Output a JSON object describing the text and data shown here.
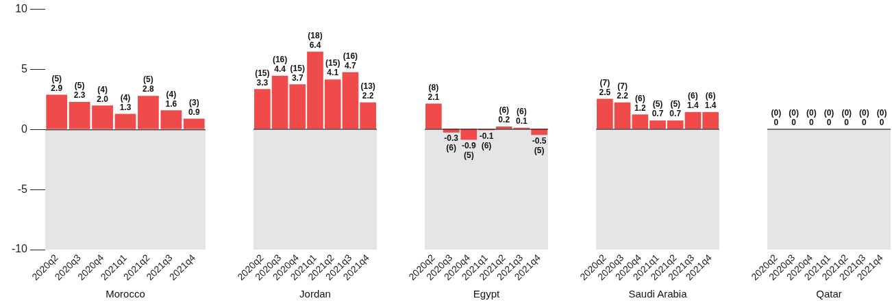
{
  "chart_data": [
    {
      "type": "bar",
      "xlabel": "Morocco",
      "categories": [
        "2020q2",
        "2020q3",
        "2020q4",
        "2021q1",
        "2021q2",
        "2021q3",
        "2021q4"
      ],
      "values": [
        2.9,
        2.3,
        2.0,
        1.3,
        2.8,
        1.6,
        0.9
      ],
      "value_labels": [
        "(5)\n2.9",
        "(5)\n2.3",
        "(4)\n2.0",
        "(4)\n1.3",
        "(5)\n2.8",
        "(4)\n1.6",
        "(3)\n0.9"
      ],
      "color": "#f04b4b",
      "ylim": [
        -10,
        10
      ],
      "yticks": [
        -10,
        -5,
        0,
        5,
        10
      ],
      "bands": [
        {
          "axis": "y",
          "from": -10,
          "to": 0,
          "color": "#e5e5e7"
        }
      ],
      "ref_lines": [
        {
          "axis": "y",
          "value": 0,
          "color": "#000000"
        }
      ]
    },
    {
      "type": "bar",
      "xlabel": "Jordan",
      "categories": [
        "2020q2",
        "2020q3",
        "2020q4",
        "2021q1",
        "2021q2",
        "2021q3",
        "2021q4"
      ],
      "values": [
        3.3,
        4.4,
        3.7,
        6.4,
        4.1,
        4.7,
        2.2
      ],
      "value_labels": [
        "(15)\n3.3",
        "(16)\n4.4",
        "(15)\n3.7",
        "(18)\n6.4",
        "(15)\n4.1",
        "(16)\n4.7",
        "(13)\n2.2"
      ],
      "color": "#f04b4b",
      "ylim": [
        -10,
        10
      ],
      "yticks": [
        -10,
        -5,
        0,
        5,
        10
      ],
      "tick_labels": "x",
      "bands": [
        {
          "axis": "y",
          "from": -10,
          "to": 0,
          "color": "#e5e5e7"
        }
      ],
      "ref_lines": [
        {
          "axis": "y",
          "value": 0,
          "color": "#000000"
        }
      ]
    },
    {
      "type": "bar",
      "xlabel": "Egypt",
      "categories": [
        "2020q2",
        "2020q3",
        "2020q4",
        "2021q1",
        "2021q2",
        "2021q3",
        "2021q4"
      ],
      "values": [
        2.1,
        -0.3,
        -0.9,
        -0.1,
        0.2,
        0.1,
        -0.5
      ],
      "value_labels": [
        "(8)\n2.1",
        "-0.3\n(6)",
        "-0.9\n(5)",
        "-0.1\n(6)",
        "(6)\n0.2",
        "(6)\n0.1",
        "-0.5\n(5)"
      ],
      "color": "#f04b4b",
      "ylim": [
        -10,
        10
      ],
      "yticks": [
        -10,
        -5,
        0,
        5,
        10
      ],
      "tick_labels": "x",
      "bands": [
        {
          "axis": "y",
          "from": -10,
          "to": 0,
          "color": "#e5e5e7"
        }
      ],
      "ref_lines": [
        {
          "axis": "y",
          "value": 0,
          "color": "#000000"
        }
      ]
    },
    {
      "type": "bar",
      "xlabel": "Saudi Arabia",
      "categories": [
        "2020q2",
        "2020q3",
        "2020q4",
        "2021q1",
        "2021q2",
        "2021q3",
        "2021q4"
      ],
      "values": [
        2.5,
        2.2,
        1.2,
        0.7,
        0.7,
        1.4,
        1.4
      ],
      "value_labels": [
        "(7)\n2.5",
        "(7)\n2.2",
        "(6)\n1.2",
        "(5)\n0.7",
        "(5)\n0.7",
        "(6)\n1.4",
        "(6)\n1.4"
      ],
      "color": "#f04b4b",
      "ylim": [
        -10,
        10
      ],
      "yticks": [
        -10,
        -5,
        0,
        5,
        10
      ],
      "tick_labels": "x",
      "bands": [
        {
          "axis": "y",
          "from": -10,
          "to": 0,
          "color": "#e5e5e7"
        }
      ],
      "ref_lines": [
        {
          "axis": "y",
          "value": 0,
          "color": "#000000"
        }
      ]
    },
    {
      "type": "bar",
      "xlabel": "Qatar",
      "categories": [
        "2020q2",
        "2020q3",
        "2020q4",
        "2021q1",
        "2021q2",
        "2021q3",
        "2021q4"
      ],
      "values": [
        0,
        0,
        0,
        0,
        0,
        0,
        0
      ],
      "value_labels": [
        "(0)\n0",
        "(0)\n0",
        "(0)\n0",
        "(0)\n0",
        "(0)\n0",
        "(0)\n0",
        "(0)\n0"
      ],
      "color": "#f04b4b",
      "ylim": [
        -10,
        10
      ],
      "yticks": [
        -10,
        -5,
        0,
        5,
        10
      ],
      "tick_labels": "x",
      "bands": [
        {
          "axis": "y",
          "from": -10,
          "to": 0,
          "color": "#e5e5e7"
        }
      ],
      "ref_lines": [
        {
          "axis": "y",
          "value": 0,
          "color": "#000000"
        }
      ]
    }
  ]
}
